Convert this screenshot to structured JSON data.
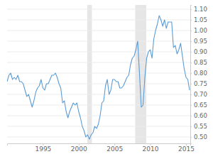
{
  "chart_data": {
    "type": "line",
    "color": "#5b9bd5",
    "grid": true,
    "x": [
      1990,
      1990.25,
      1990.5,
      1990.75,
      1991,
      1991.25,
      1991.5,
      1991.75,
      1992,
      1992.25,
      1992.5,
      1992.75,
      1993,
      1993.25,
      1993.5,
      1993.75,
      1994,
      1994.25,
      1994.5,
      1994.75,
      1995,
      1995.25,
      1995.5,
      1995.75,
      1996,
      1996.25,
      1996.5,
      1996.75,
      1997,
      1997.25,
      1997.5,
      1997.75,
      1998,
      1998.25,
      1998.5,
      1998.75,
      1999,
      1999.25,
      1999.5,
      1999.75,
      2000,
      2000.25,
      2000.5,
      2000.75,
      2001,
      2001.25,
      2001.5,
      2001.75,
      2002,
      2002.25,
      2002.5,
      2002.75,
      2003,
      2003.25,
      2003.5,
      2003.75,
      2004,
      2004.25,
      2004.5,
      2004.75,
      2005,
      2005.25,
      2005.5,
      2005.75,
      2006,
      2006.25,
      2006.5,
      2006.75,
      2007,
      2007.25,
      2007.5,
      2007.75,
      2008,
      2008.25,
      2008.5,
      2008.75,
      2009,
      2009.25,
      2009.5,
      2009.75,
      2010,
      2010.25,
      2010.5,
      2010.75,
      2011,
      2011.25,
      2011.5,
      2011.75,
      2012,
      2012.25,
      2012.5,
      2012.75,
      2013,
      2013.25,
      2013.5,
      2013.75,
      2014,
      2014.25,
      2014.5,
      2014.75,
      2015,
      2015.25,
      2015.5
    ],
    "values": [
      0.76,
      0.79,
      0.8,
      0.77,
      0.78,
      0.77,
      0.79,
      0.76,
      0.76,
      0.75,
      0.72,
      0.69,
      0.7,
      0.67,
      0.64,
      0.67,
      0.71,
      0.73,
      0.74,
      0.77,
      0.73,
      0.72,
      0.75,
      0.75,
      0.77,
      0.79,
      0.79,
      0.8,
      0.78,
      0.75,
      0.73,
      0.66,
      0.67,
      0.62,
      0.59,
      0.62,
      0.64,
      0.66,
      0.65,
      0.66,
      0.62,
      0.59,
      0.55,
      0.53,
      0.5,
      0.51,
      0.49,
      0.51,
      0.52,
      0.55,
      0.54,
      0.56,
      0.6,
      0.66,
      0.67,
      0.74,
      0.77,
      0.7,
      0.72,
      0.77,
      0.77,
      0.76,
      0.76,
      0.73,
      0.73,
      0.74,
      0.76,
      0.78,
      0.79,
      0.84,
      0.87,
      0.88,
      0.91,
      0.95,
      0.8,
      0.64,
      0.65,
      0.78,
      0.87,
      0.9,
      0.91,
      0.87,
      0.96,
      1.0,
      1.03,
      1.07,
      1.05,
      1.02,
      1.05,
      1.01,
      1.04,
      1.04,
      1.04,
      0.92,
      0.93,
      0.89,
      0.91,
      0.94,
      0.88,
      0.82,
      0.78,
      0.77,
      0.72
    ],
    "xlim": [
      1990,
      2015.6
    ],
    "xticks": [
      1995,
      2000,
      2005,
      2010,
      2015
    ],
    "ylim": [
      0.47,
      1.12
    ],
    "yticks": [
      {
        "value": 0.5,
        "label": "0.50"
      },
      0.55,
      {
        "value": 0.6,
        "label": "0.60"
      },
      0.65,
      {
        "value": 0.7,
        "label": "0.70"
      },
      0.75,
      {
        "value": 0.8,
        "label": "0.80"
      },
      0.85,
      {
        "value": 0.9,
        "label": "0.90"
      },
      0.95,
      {
        "value": 1,
        "label": "1.00"
      },
      1.05,
      {
        "value": 1.1,
        "label": "1.10"
      }
    ],
    "recessions": [
      {
        "start": 2001.2,
        "end": 2001.85
      },
      {
        "start": 2007.9,
        "end": 2009.45
      }
    ]
  }
}
